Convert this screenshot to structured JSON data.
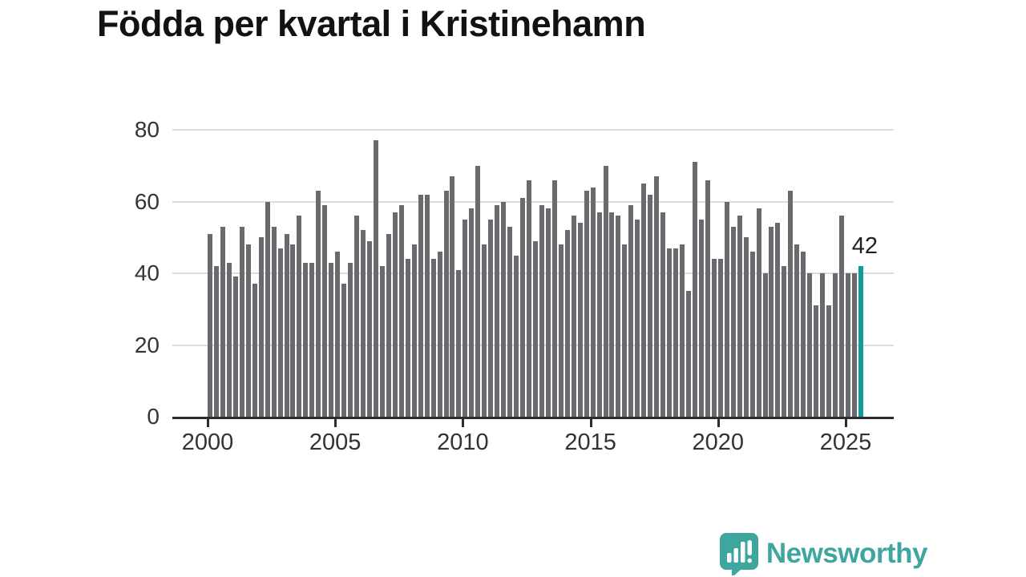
{
  "title": "Födda per kvartal i Kristinehamn",
  "chart_data": {
    "type": "bar",
    "frequency": "quarterly",
    "x_start": "2000 Q1",
    "x_end": "2025 Q3",
    "values": [
      51,
      42,
      53,
      43,
      39,
      53,
      48,
      37,
      50,
      60,
      53,
      47,
      51,
      48,
      56,
      43,
      43,
      63,
      59,
      43,
      46,
      37,
      43,
      56,
      52,
      49,
      77,
      42,
      51,
      57,
      59,
      44,
      48,
      62,
      62,
      44,
      46,
      63,
      67,
      41,
      55,
      58,
      70,
      48,
      55,
      59,
      60,
      53,
      45,
      61,
      66,
      49,
      59,
      58,
      66,
      48,
      52,
      56,
      54,
      63,
      64,
      57,
      70,
      57,
      56,
      48,
      59,
      55,
      65,
      62,
      67,
      57,
      47,
      47,
      48,
      35,
      71,
      55,
      66,
      44,
      44,
      60,
      53,
      56,
      50,
      46,
      58,
      40,
      53,
      54,
      42,
      63,
      48,
      46,
      40,
      31,
      40,
      31,
      40,
      56,
      40,
      40,
      42
    ],
    "ylim": [
      0,
      80
    ],
    "y_ticks": [
      0,
      20,
      40,
      60,
      80
    ],
    "x_ticks": [
      "2000",
      "2005",
      "2010",
      "2015",
      "2020",
      "2025"
    ],
    "grid": true,
    "legend": false,
    "bar_color": "#6a6a6e",
    "highlight_color": "#0f9c9a",
    "highlight_index": 102,
    "annotation": {
      "text": "42",
      "value": 42,
      "target": "last-bar"
    }
  },
  "branding": {
    "name": "Newsworthy",
    "color": "#3ea59f"
  }
}
